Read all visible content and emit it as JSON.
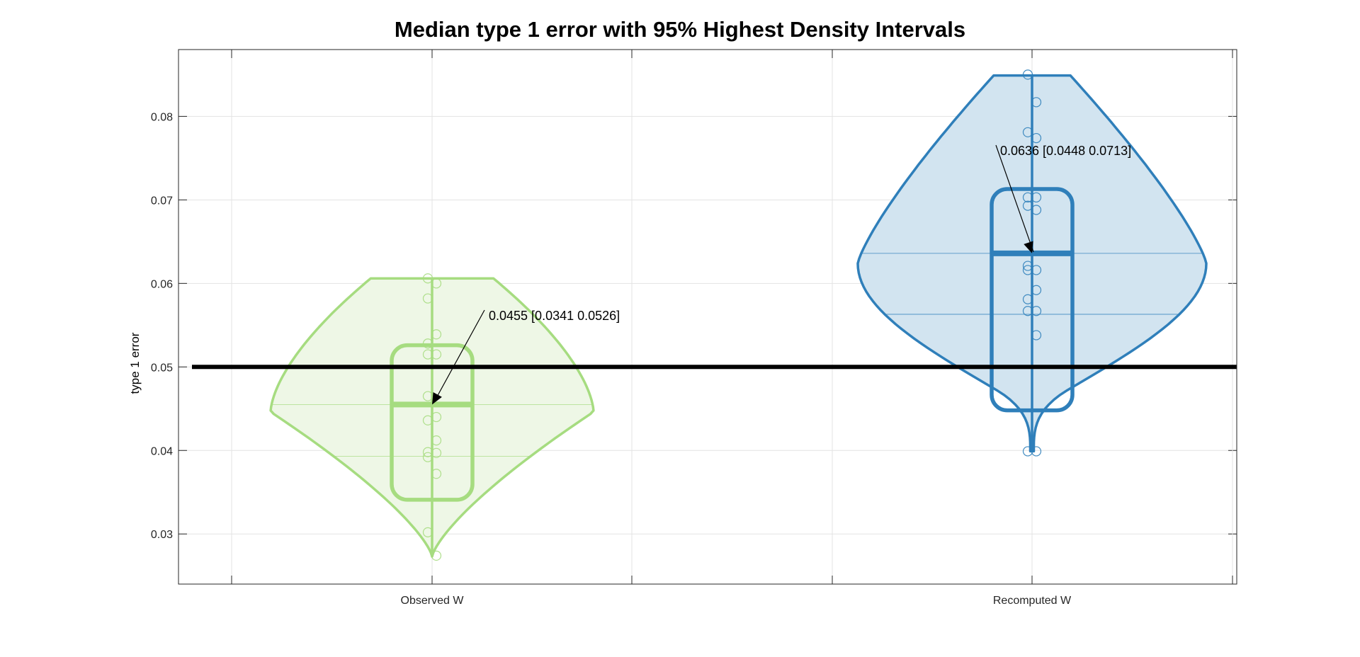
{
  "chart_data": {
    "type": "violin",
    "title": "Median type 1 error with 95% Highest Density Intervals",
    "ylabel": "type 1 error",
    "xlabel": "",
    "categories": [
      "Observed W",
      "Recomputed W"
    ],
    "ylim": [
      0.024,
      0.088
    ],
    "yticks": [
      "0.03",
      "0.04",
      "0.05",
      "0.06",
      "0.07",
      "0.08"
    ],
    "grid": true,
    "reference_line": 0.05,
    "series": [
      {
        "category": "Observed W",
        "color": "#a6dc80",
        "fill": "#eef7e6",
        "median": 0.0455,
        "hdi": [
          0.0341,
          0.0526
        ],
        "annotation": "0.0455 [0.0341 0.0526]",
        "range": [
          0.0273,
          0.0606
        ],
        "mean_line": 0.0455,
        "extra_line": 0.0393,
        "points": [
          {
            "y": 0.0606,
            "side": -1
          },
          {
            "y": 0.06,
            "side": 1
          },
          {
            "y": 0.0582,
            "side": -1
          },
          {
            "y": 0.0539,
            "side": 1
          },
          {
            "y": 0.0528,
            "side": -1
          },
          {
            "y": 0.0515,
            "side": -1
          },
          {
            "y": 0.0515,
            "side": 1
          },
          {
            "y": 0.0465,
            "side": -1
          },
          {
            "y": 0.044,
            "side": 1
          },
          {
            "y": 0.0436,
            "side": -1
          },
          {
            "y": 0.0412,
            "side": 1
          },
          {
            "y": 0.0398,
            "side": -1
          },
          {
            "y": 0.0397,
            "side": 1
          },
          {
            "y": 0.0392,
            "side": -1
          },
          {
            "y": 0.0372,
            "side": 1
          },
          {
            "y": 0.0302,
            "side": -1
          },
          {
            "y": 0.0274,
            "side": 1
          }
        ]
      },
      {
        "category": "Recomputed W",
        "color": "#2f7fba",
        "fill": "#d2e4f0",
        "median": 0.0636,
        "hdi": [
          0.0448,
          0.0713
        ],
        "annotation": "0.0636 [0.0448 0.0713]",
        "range": [
          0.0399,
          0.0849
        ],
        "mean_line": 0.0636,
        "extra_line": 0.0563,
        "points": [
          {
            "y": 0.085,
            "side": -1
          },
          {
            "y": 0.0817,
            "side": 1
          },
          {
            "y": 0.0781,
            "side": -1
          },
          {
            "y": 0.0774,
            "side": 1
          },
          {
            "y": 0.0703,
            "side": -1
          },
          {
            "y": 0.0703,
            "side": 1
          },
          {
            "y": 0.0693,
            "side": -1
          },
          {
            "y": 0.0688,
            "side": 1
          },
          {
            "y": 0.0621,
            "side": -1
          },
          {
            "y": 0.0616,
            "side": -1
          },
          {
            "y": 0.0616,
            "side": 1
          },
          {
            "y": 0.0592,
            "side": 1
          },
          {
            "y": 0.0581,
            "side": -1
          },
          {
            "y": 0.0567,
            "side": -1
          },
          {
            "y": 0.0567,
            "side": 1
          },
          {
            "y": 0.0538,
            "side": 1
          },
          {
            "y": 0.0399,
            "side": -1
          },
          {
            "y": 0.0399,
            "side": 1
          }
        ]
      }
    ]
  }
}
